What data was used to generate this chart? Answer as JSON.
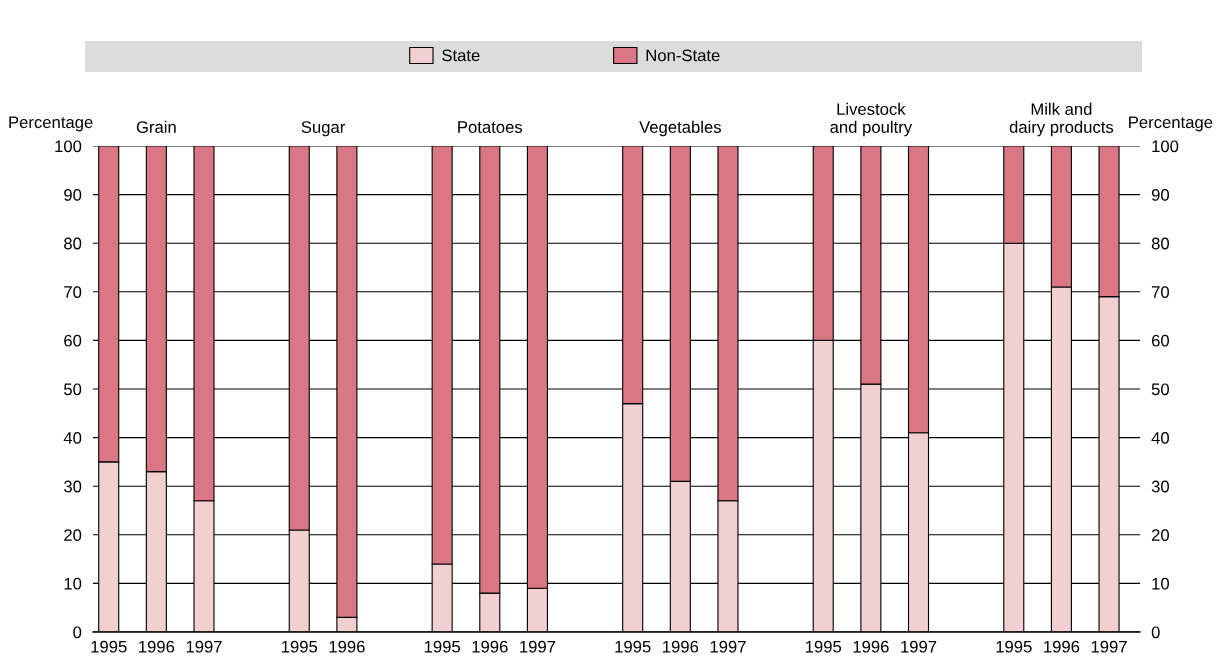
{
  "chart_data": {
    "type": "bar",
    "stacked": true,
    "categories": [
      "1995",
      "1996",
      "1997",
      null,
      "1995",
      "1996",
      null,
      "1995",
      "1996",
      "1997",
      null,
      "1995",
      "1996",
      "1997",
      null,
      "1995",
      "1996",
      "1997",
      null,
      "1995",
      "1996",
      "1997"
    ],
    "series": [
      {
        "name": "State",
        "color": "#f2cfd0",
        "values": [
          35,
          33,
          27,
          null,
          21,
          3,
          null,
          14,
          8,
          9,
          null,
          47,
          31,
          27,
          null,
          60,
          51,
          41,
          null,
          80,
          71,
          69
        ]
      },
      {
        "name": "Non-State",
        "color": "#d97884",
        "values": [
          65,
          67,
          73,
          null,
          79,
          97,
          null,
          86,
          92,
          91,
          null,
          53,
          69,
          73,
          null,
          40,
          49,
          59,
          null,
          20,
          29,
          31
        ]
      }
    ],
    "annotations": [
      "Grain",
      "Sugar",
      "Potatoes",
      "Vegetables",
      "Livestock\nand poultry",
      "Milk and\ndairy products"
    ],
    "ylabel": "Percentage",
    "y2label": "Percentage",
    "ylim": [
      0,
      100
    ],
    "yticks": [
      0,
      10,
      20,
      30,
      40,
      50,
      60,
      70,
      80,
      90,
      100
    ],
    "y2lim": [
      0,
      100
    ],
    "y2ticks": [
      0,
      10,
      20,
      30,
      40,
      50,
      60,
      70,
      80,
      90,
      100
    ],
    "grid": "y",
    "legend": "top"
  }
}
